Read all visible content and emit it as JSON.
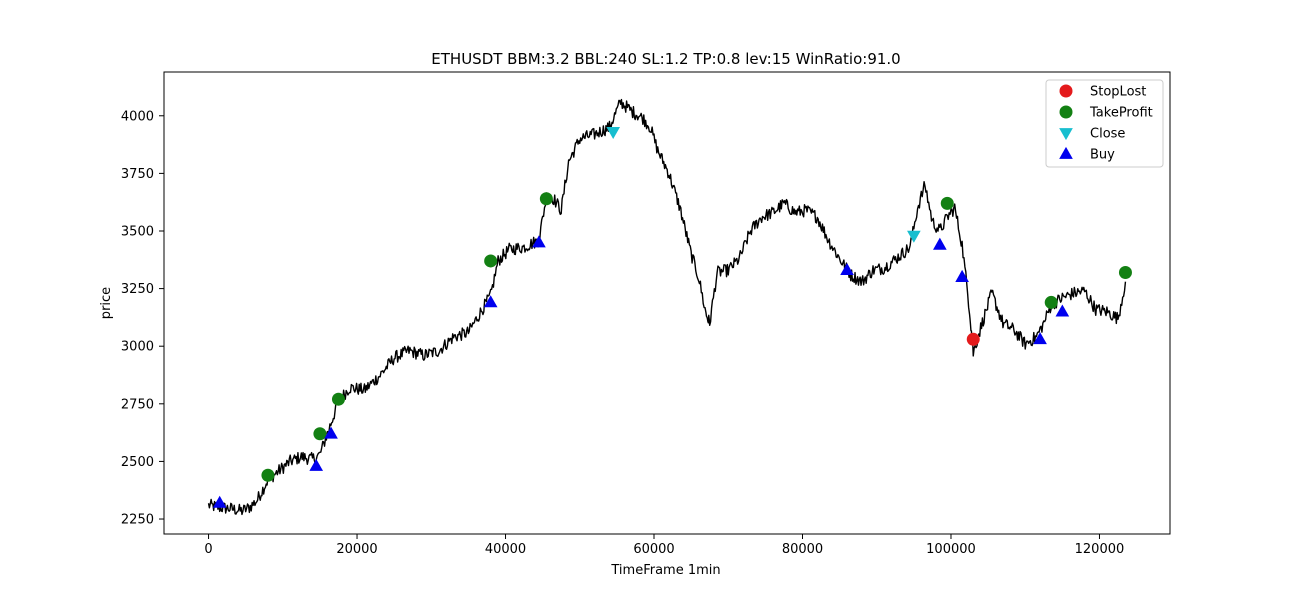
{
  "chart_data": {
    "type": "line",
    "title": "ETHUSDT BBM:3.2 BBL:240 SL:1.2 TP:0.8 lev:15 WinRatio:91.0",
    "xlabel": "TimeFrame 1min",
    "ylabel": "price",
    "xlim": [
      -6000,
      129500
    ],
    "ylim": [
      2185,
      4190
    ],
    "xticks": [
      0,
      20000,
      40000,
      60000,
      80000,
      100000,
      120000
    ],
    "xtick_labels": [
      "0",
      "20000",
      "40000",
      "60000",
      "80000",
      "100000",
      "120000"
    ],
    "yticks": [
      2250,
      2500,
      2750,
      3000,
      3250,
      3500,
      3750,
      4000
    ],
    "ytick_labels": [
      "2250",
      "2500",
      "2750",
      "3000",
      "3250",
      "3500",
      "3750",
      "4000"
    ],
    "legend_position": "top-right",
    "price_series": {
      "color": "#000000",
      "x": [
        0,
        1500,
        3000,
        4500,
        5500,
        6500,
        8000,
        9500,
        11000,
        12500,
        14000,
        15000,
        16000,
        17500,
        19000,
        21000,
        23000,
        25000,
        27000,
        29000,
        31000,
        33000,
        35000,
        36500,
        38000,
        39000,
        40500,
        42500,
        44500,
        45500,
        46500,
        47500,
        48500,
        50000,
        52000,
        54000,
        55500,
        57000,
        58500,
        59500,
        60500,
        62000,
        63500,
        65000,
        66000,
        67000,
        67500,
        68500,
        70000,
        71500,
        73000,
        74500,
        76000,
        77500,
        79000,
        80500,
        82000,
        83500,
        85000,
        86500,
        88000,
        89500,
        91000,
        93000,
        94500,
        95500,
        96500,
        97500,
        98500,
        99500,
        100500,
        101500,
        102500,
        103000,
        104000,
        105500,
        107000,
        108500,
        110000,
        111500,
        112500,
        113500,
        115000,
        116500,
        118000,
        119500,
        121000,
        122500,
        123500
      ],
      "y": [
        2310,
        2300,
        2295,
        2285,
        2300,
        2330,
        2420,
        2460,
        2500,
        2520,
        2510,
        2530,
        2620,
        2760,
        2820,
        2810,
        2870,
        2950,
        2980,
        2960,
        2980,
        3040,
        3060,
        3140,
        3220,
        3370,
        3420,
        3430,
        3460,
        3650,
        3640,
        3590,
        3800,
        3900,
        3920,
        3950,
        4060,
        4020,
        3990,
        3950,
        3850,
        3750,
        3600,
        3400,
        3300,
        3140,
        3100,
        3320,
        3330,
        3380,
        3500,
        3560,
        3580,
        3620,
        3580,
        3590,
        3560,
        3460,
        3380,
        3310,
        3280,
        3330,
        3340,
        3390,
        3430,
        3600,
        3700,
        3540,
        3500,
        3560,
        3600,
        3440,
        3160,
        2970,
        3080,
        3230,
        3100,
        3070,
        3010,
        3040,
        3100,
        3180,
        3210,
        3230,
        3240,
        3160,
        3150,
        3120,
        3280
      ]
    },
    "markers": [
      {
        "name": "StopLost",
        "shape": "circle",
        "color": "#e41a1c",
        "points": [
          [
            103000,
            3030
          ]
        ]
      },
      {
        "name": "TakeProfit",
        "shape": "circle",
        "color": "#138013",
        "points": [
          [
            8000,
            2440
          ],
          [
            15000,
            2620
          ],
          [
            17500,
            2770
          ],
          [
            38000,
            3370
          ],
          [
            45500,
            3640
          ],
          [
            99500,
            3620
          ],
          [
            113500,
            3190
          ],
          [
            123500,
            3320
          ]
        ]
      },
      {
        "name": "Close",
        "shape": "triangle-down",
        "color": "#17becf",
        "points": [
          [
            54500,
            3930
          ],
          [
            95000,
            3480
          ]
        ]
      },
      {
        "name": "Buy",
        "shape": "triangle-up",
        "color": "#0000ee",
        "points": [
          [
            1500,
            2320
          ],
          [
            14500,
            2480
          ],
          [
            16500,
            2620
          ],
          [
            38000,
            3190
          ],
          [
            44500,
            3450
          ],
          [
            86000,
            3330
          ],
          [
            98500,
            3440
          ],
          [
            101500,
            3300
          ],
          [
            112000,
            3030
          ],
          [
            115000,
            3150
          ]
        ]
      }
    ]
  }
}
